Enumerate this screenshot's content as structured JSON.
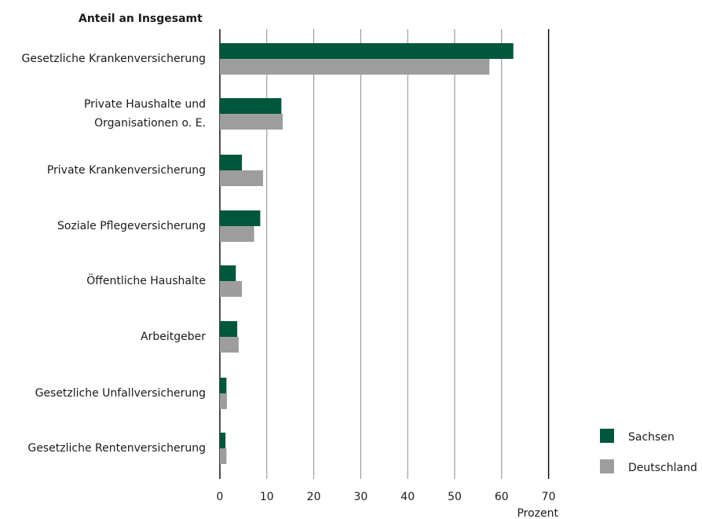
{
  "chart_data": {
    "type": "bar",
    "orientation": "horizontal",
    "title": "Anteil an Insgesamt",
    "xlabel": "Prozent",
    "xlim": [
      0,
      70
    ],
    "xticks": [
      0,
      10,
      20,
      30,
      40,
      50,
      60,
      70
    ],
    "grid": true,
    "legend_position": "bottom-right",
    "categories": [
      [
        "Gesetzliche Krankenversicherung"
      ],
      [
        "Private Haushalte und",
        "Organisationen o. E."
      ],
      [
        "Private Krankenversicherung"
      ],
      [
        "Soziale Pflegeversicherung"
      ],
      [
        "Öffentliche Haushalte"
      ],
      [
        "Arbeitgeber"
      ],
      [
        "Gesetzliche Unfallversicherung"
      ],
      [
        "Gesetzliche Rentenversicherung"
      ]
    ],
    "series": [
      {
        "name": "Sachsen",
        "color": "#00573b",
        "values": [
          62.5,
          13.1,
          4.7,
          8.6,
          3.4,
          3.7,
          1.4,
          1.2
        ]
      },
      {
        "name": "Deutschland",
        "color": "#9d9d9d",
        "values": [
          57.4,
          13.4,
          9.2,
          7.3,
          4.7,
          4.0,
          1.5,
          1.4
        ]
      }
    ]
  }
}
